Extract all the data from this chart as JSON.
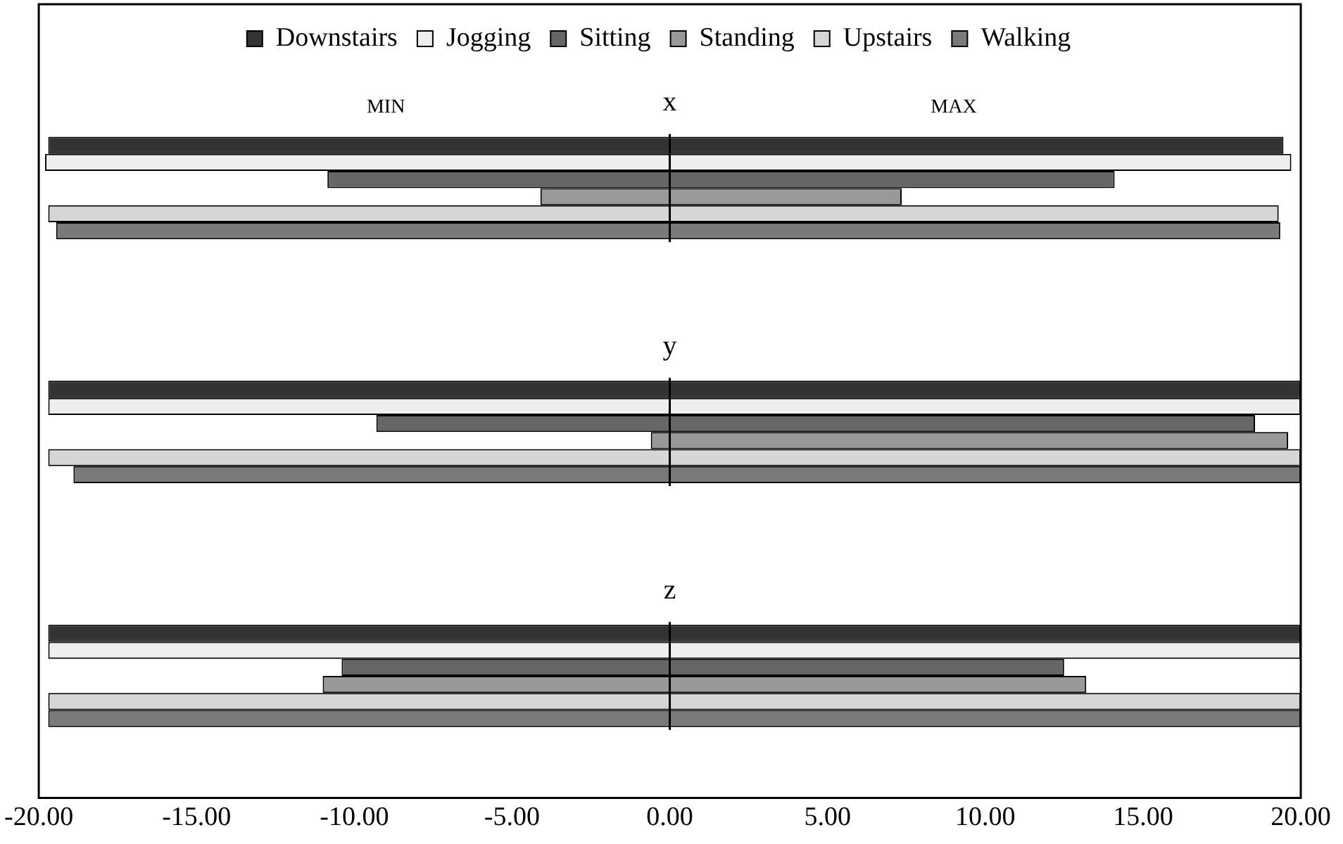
{
  "chart_data": {
    "type": "bar",
    "orientation": "horizontal",
    "categories": [
      "x",
      "y",
      "z"
    ],
    "series": [
      {
        "name": "Downstairs",
        "color": "#333333",
        "base": [
          -19.7,
          -19.7,
          -19.7
        ],
        "values": [
          39.15,
          39.7,
          39.7
        ]
      },
      {
        "name": "Jogging",
        "color": "#eeeeee",
        "base": [
          -19.8,
          -19.7,
          -19.7
        ],
        "values": [
          39.5,
          39.7,
          39.7
        ]
      },
      {
        "name": "Sitting",
        "color": "#666666",
        "base": [
          -10.85,
          -9.3,
          -10.4
        ],
        "values": [
          24.95,
          27.85,
          22.9
        ]
      },
      {
        "name": "Standing",
        "color": "#999999",
        "base": [
          -4.1,
          -0.6,
          -11.0
        ],
        "values": [
          11.45,
          20.2,
          24.2
        ]
      },
      {
        "name": "Upstairs",
        "color": "#d6d6d6",
        "base": [
          -19.7,
          -19.7,
          -19.7
        ],
        "values": [
          39.0,
          39.7,
          39.7
        ]
      },
      {
        "name": "Walking",
        "color": "#7a7a7a",
        "base": [
          -19.45,
          -18.9,
          -19.7
        ],
        "values": [
          38.8,
          38.9,
          39.7
        ]
      }
    ],
    "xlim": [
      -20,
      20
    ],
    "xticks": [
      {
        "value": -20,
        "label": "-20.00"
      },
      {
        "value": -15,
        "label": "-15.00"
      },
      {
        "value": -10,
        "label": "-10.00"
      },
      {
        "value": -5,
        "label": "-5.00"
      },
      {
        "value": 0,
        "label": "0.00"
      },
      {
        "value": 5,
        "label": "5.00"
      },
      {
        "value": 10,
        "label": "10.00"
      },
      {
        "value": 15,
        "label": "15.00"
      },
      {
        "value": 20,
        "label": "20.00"
      }
    ],
    "annotations": [
      "MIN",
      "MAX"
    ],
    "ref_lines": [
      {
        "axis": "x",
        "value": 0
      }
    ],
    "legend": "top",
    "grid": false
  }
}
